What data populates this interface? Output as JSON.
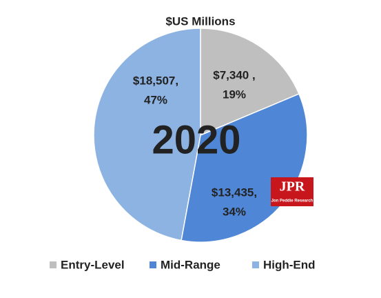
{
  "chart_data": {
    "type": "pie",
    "title": "$US Millions",
    "categories": [
      "Entry-Level",
      "Mid-Range",
      "High-End"
    ],
    "values": [
      7340,
      13435,
      18507
    ],
    "value_labels": [
      "$7,340 ,",
      "$13,435,",
      "$18,507,"
    ],
    "percent_labels": [
      "19%",
      "34%",
      "47%"
    ],
    "colors": [
      "#bfbfbf",
      "#4f87d6",
      "#8db3e2"
    ],
    "annotation": "2020",
    "legend": "bottom"
  },
  "logo": {
    "mark": "JPR",
    "name": "Jon Peddie Research"
  }
}
